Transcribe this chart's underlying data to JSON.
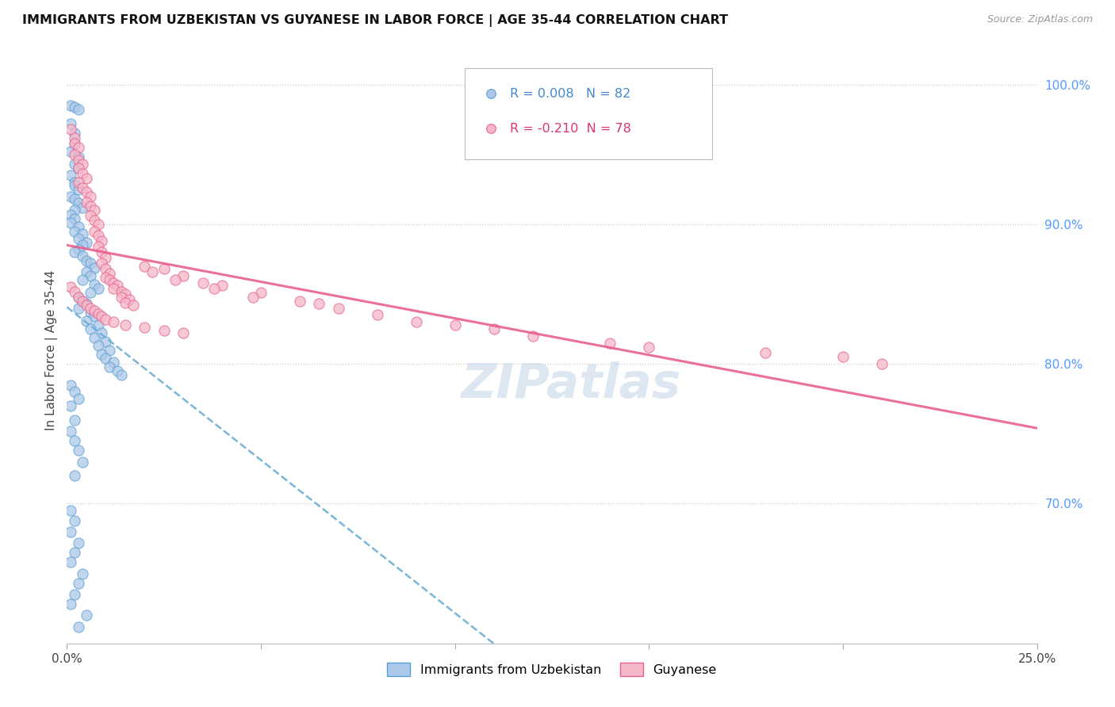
{
  "title": "IMMIGRANTS FROM UZBEKISTAN VS GUYANESE IN LABOR FORCE | AGE 35-44 CORRELATION CHART",
  "source": "Source: ZipAtlas.com",
  "ylabel": "In Labor Force | Age 35-44",
  "xlim": [
    0.0,
    0.25
  ],
  "ylim": [
    0.6,
    1.02
  ],
  "xtick_positions": [
    0.0,
    0.05,
    0.1,
    0.15,
    0.2,
    0.25
  ],
  "xtick_labels": [
    "0.0%",
    "",
    "",
    "",
    "",
    "25.0%"
  ],
  "ytick_vals_right": [
    1.0,
    0.9,
    0.8,
    0.7
  ],
  "ytick_labels_right": [
    "100.0%",
    "90.0%",
    "80.0%",
    "70.0%"
  ],
  "color_uzbek_fill": "#adc8e8",
  "color_uzbek_edge": "#5a9fd4",
  "color_guyana_fill": "#f5b8c8",
  "color_guyana_edge": "#e86090",
  "color_uzbek_line": "#6baed6",
  "color_guyana_line": "#e8608a",
  "watermark_color": "#c5d8ea",
  "uzbek_x": [
    0.001,
    0.002,
    0.003,
    0.001,
    0.002,
    0.002,
    0.001,
    0.003,
    0.002,
    0.003,
    0.001,
    0.002,
    0.002,
    0.003,
    0.001,
    0.002,
    0.003,
    0.004,
    0.002,
    0.001,
    0.002,
    0.001,
    0.003,
    0.002,
    0.004,
    0.003,
    0.005,
    0.004,
    0.003,
    0.002,
    0.004,
    0.005,
    0.006,
    0.007,
    0.005,
    0.006,
    0.004,
    0.007,
    0.008,
    0.006,
    0.003,
    0.004,
    0.005,
    0.003,
    0.006,
    0.007,
    0.005,
    0.008,
    0.006,
    0.009,
    0.007,
    0.01,
    0.008,
    0.011,
    0.009,
    0.01,
    0.012,
    0.011,
    0.013,
    0.014,
    0.001,
    0.002,
    0.003,
    0.001,
    0.002,
    0.001,
    0.002,
    0.003,
    0.004,
    0.002,
    0.001,
    0.002,
    0.001,
    0.003,
    0.002,
    0.001,
    0.004,
    0.003,
    0.002,
    0.001,
    0.005,
    0.003
  ],
  "uzbek_y": [
    0.985,
    0.984,
    0.982,
    0.972,
    0.965,
    0.958,
    0.952,
    0.948,
    0.943,
    0.94,
    0.935,
    0.93,
    0.928,
    0.925,
    0.92,
    0.918,
    0.915,
    0.912,
    0.91,
    0.907,
    0.904,
    0.901,
    0.898,
    0.895,
    0.893,
    0.89,
    0.887,
    0.885,
    0.882,
    0.88,
    0.877,
    0.874,
    0.872,
    0.869,
    0.866,
    0.863,
    0.86,
    0.857,
    0.854,
    0.851,
    0.848,
    0.845,
    0.843,
    0.84,
    0.837,
    0.834,
    0.831,
    0.828,
    0.825,
    0.822,
    0.819,
    0.816,
    0.813,
    0.81,
    0.807,
    0.804,
    0.801,
    0.798,
    0.795,
    0.792,
    0.785,
    0.78,
    0.775,
    0.77,
    0.76,
    0.752,
    0.745,
    0.738,
    0.73,
    0.72,
    0.695,
    0.688,
    0.68,
    0.672,
    0.665,
    0.658,
    0.65,
    0.643,
    0.635,
    0.628,
    0.62,
    0.612
  ],
  "guyana_x": [
    0.001,
    0.002,
    0.002,
    0.003,
    0.002,
    0.003,
    0.004,
    0.003,
    0.004,
    0.005,
    0.003,
    0.004,
    0.005,
    0.006,
    0.005,
    0.006,
    0.007,
    0.006,
    0.007,
    0.008,
    0.007,
    0.008,
    0.009,
    0.008,
    0.009,
    0.01,
    0.009,
    0.01,
    0.011,
    0.01,
    0.011,
    0.012,
    0.013,
    0.012,
    0.014,
    0.015,
    0.014,
    0.016,
    0.015,
    0.017,
    0.02,
    0.025,
    0.022,
    0.03,
    0.028,
    0.035,
    0.04,
    0.038,
    0.05,
    0.048,
    0.06,
    0.065,
    0.07,
    0.08,
    0.09,
    0.1,
    0.11,
    0.12,
    0.14,
    0.15,
    0.18,
    0.2,
    0.21,
    0.001,
    0.002,
    0.003,
    0.004,
    0.005,
    0.006,
    0.007,
    0.008,
    0.009,
    0.01,
    0.012,
    0.015,
    0.02,
    0.025,
    0.03
  ],
  "guyana_y": [
    0.968,
    0.962,
    0.958,
    0.955,
    0.95,
    0.946,
    0.943,
    0.94,
    0.936,
    0.933,
    0.93,
    0.926,
    0.923,
    0.92,
    0.916,
    0.913,
    0.91,
    0.906,
    0.903,
    0.9,
    0.895,
    0.892,
    0.888,
    0.884,
    0.88,
    0.876,
    0.872,
    0.868,
    0.865,
    0.862,
    0.86,
    0.858,
    0.856,
    0.854,
    0.852,
    0.85,
    0.848,
    0.846,
    0.844,
    0.842,
    0.87,
    0.868,
    0.866,
    0.863,
    0.86,
    0.858,
    0.856,
    0.854,
    0.851,
    0.848,
    0.845,
    0.843,
    0.84,
    0.835,
    0.83,
    0.828,
    0.825,
    0.82,
    0.815,
    0.812,
    0.808,
    0.805,
    0.8,
    0.855,
    0.852,
    0.848,
    0.845,
    0.842,
    0.84,
    0.838,
    0.836,
    0.834,
    0.832,
    0.83,
    0.828,
    0.826,
    0.824,
    0.822
  ]
}
